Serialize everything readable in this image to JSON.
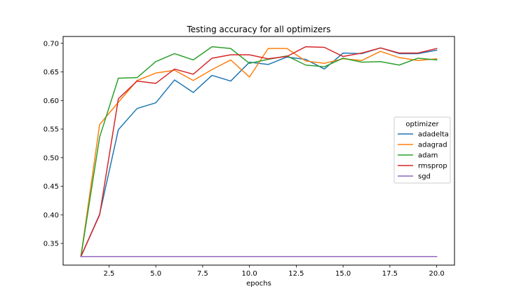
{
  "chart_data": {
    "type": "line",
    "title": "Testing accuracy for all optimizers",
    "xlabel": "epochs",
    "ylabel": "",
    "xlim": [
      0.05,
      20.95
    ],
    "ylim": [
      0.312,
      0.712
    ],
    "x_ticks": [
      2.5,
      5.0,
      7.5,
      10.0,
      12.5,
      15.0,
      17.5,
      20.0
    ],
    "x_tick_labels": [
      "2.5",
      "5.0",
      "7.5",
      "10.0",
      "12.5",
      "15.0",
      "17.5",
      "20.0"
    ],
    "y_ticks": [
      0.35,
      0.4,
      0.45,
      0.5,
      0.55,
      0.6,
      0.65,
      0.7
    ],
    "y_tick_labels": [
      "0.35",
      "0.40",
      "0.45",
      "0.50",
      "0.55",
      "0.60",
      "0.65",
      "0.70"
    ],
    "grid": false,
    "legend": {
      "title": "optimizer",
      "placement": "center-right"
    },
    "x": [
      1,
      2,
      3,
      4,
      5,
      6,
      7,
      8,
      9,
      10,
      11,
      12,
      13,
      14,
      15,
      16,
      17,
      18,
      19,
      20
    ],
    "series": [
      {
        "name": "adadelta",
        "color": "#1f77b4",
        "values": [
          0.327,
          0.401,
          0.549,
          0.586,
          0.596,
          0.636,
          0.614,
          0.644,
          0.634,
          0.667,
          0.663,
          0.676,
          0.672,
          0.655,
          0.683,
          0.682,
          0.692,
          0.682,
          0.682,
          0.688
        ]
      },
      {
        "name": "adagrad",
        "color": "#ff7f0e",
        "values": [
          0.327,
          0.558,
          0.597,
          0.635,
          0.648,
          0.653,
          0.635,
          0.654,
          0.671,
          0.641,
          0.691,
          0.691,
          0.669,
          0.665,
          0.673,
          0.67,
          0.686,
          0.675,
          0.67,
          0.673
        ]
      },
      {
        "name": "adam",
        "color": "#2ca02c",
        "values": [
          0.327,
          0.536,
          0.639,
          0.64,
          0.668,
          0.682,
          0.671,
          0.694,
          0.691,
          0.665,
          0.672,
          0.678,
          0.662,
          0.659,
          0.674,
          0.667,
          0.668,
          0.662,
          0.674,
          0.671
        ]
      },
      {
        "name": "rmsprop",
        "color": "#d62728",
        "values": [
          0.327,
          0.4,
          0.603,
          0.634,
          0.63,
          0.655,
          0.646,
          0.674,
          0.68,
          0.68,
          0.673,
          0.677,
          0.694,
          0.693,
          0.677,
          0.683,
          0.692,
          0.683,
          0.683,
          0.691
        ]
      },
      {
        "name": "sgd",
        "color": "#9467bd",
        "values": [
          0.327,
          0.327,
          0.327,
          0.327,
          0.327,
          0.327,
          0.327,
          0.327,
          0.327,
          0.327,
          0.327,
          0.327,
          0.327,
          0.327,
          0.327,
          0.327,
          0.327,
          0.327,
          0.327,
          0.327
        ]
      }
    ]
  }
}
